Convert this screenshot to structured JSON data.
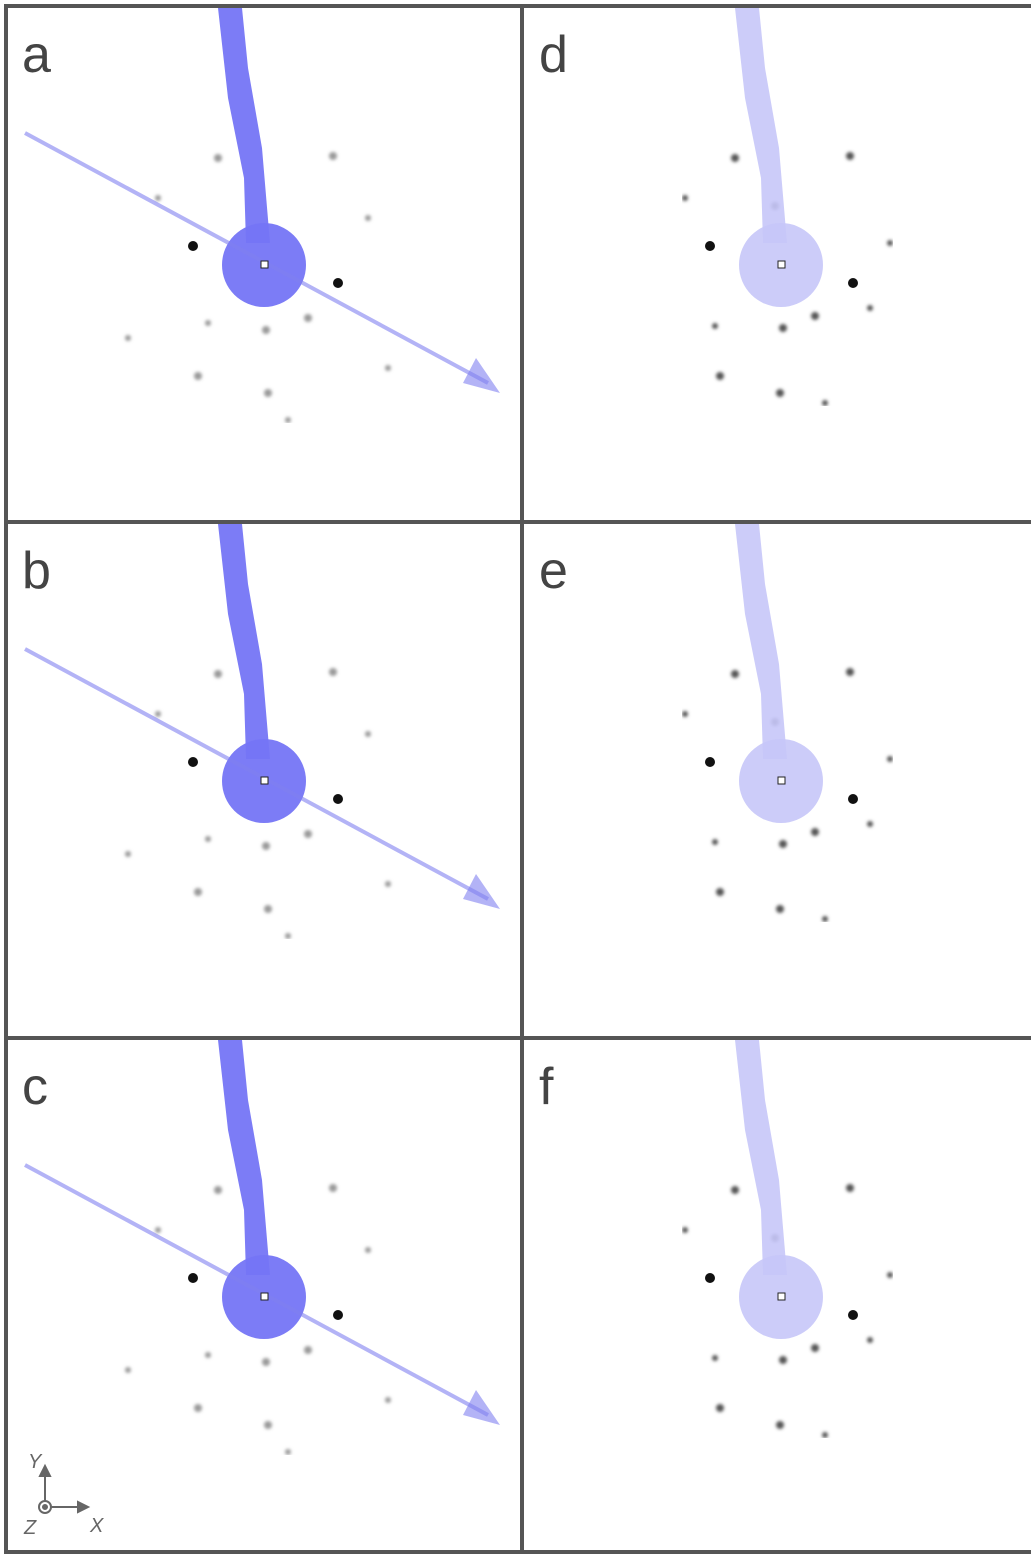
{
  "panels": [
    {
      "label": "a"
    },
    {
      "label": "b"
    },
    {
      "label": "c"
    },
    {
      "label": "d"
    },
    {
      "label": "e"
    },
    {
      "label": "f"
    }
  ],
  "axes": {
    "y": "Y",
    "z": "Z",
    "x": "X"
  }
}
